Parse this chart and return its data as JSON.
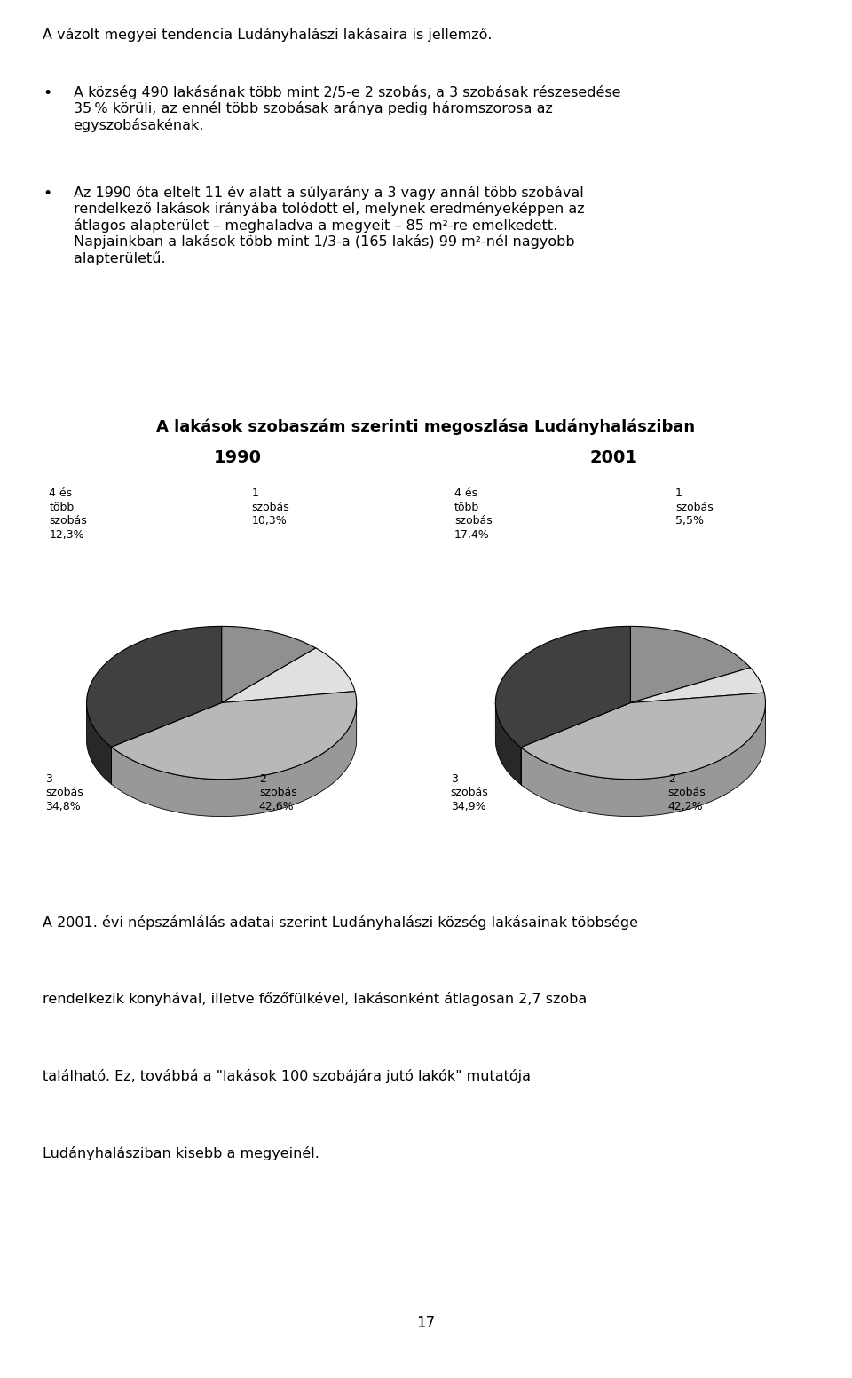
{
  "title_chart": "A lakások szobaszám szerinti megoszlása Ludányhalásziban",
  "year1": "1990",
  "year2": "2001",
  "pie1_values": [
    12.3,
    10.3,
    42.6,
    34.8
  ],
  "pie2_values": [
    17.4,
    5.5,
    42.2,
    34.9
  ],
  "pie_colors": [
    "#909090",
    "#e0e0e0",
    "#b8b8b8",
    "#404040"
  ],
  "pie_side_colors": [
    "#707070",
    "#c0c0c0",
    "#989898",
    "#282828"
  ],
  "pie_edge_color": "#000000",
  "background_color": "#ffffff",
  "text_color": "#000000",
  "page_number": "17"
}
